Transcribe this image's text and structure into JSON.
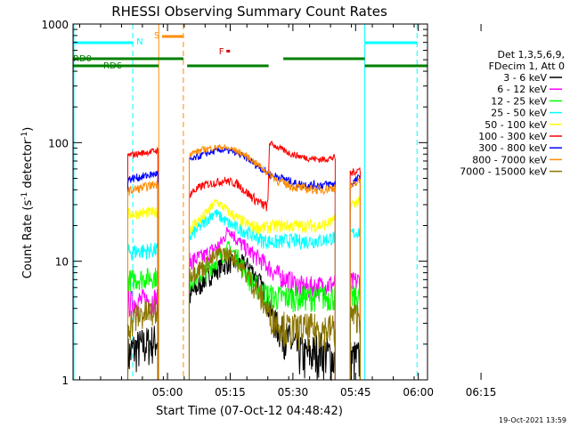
{
  "chart_data": {
    "type": "line",
    "title": "RHESSI Observing Summary Count Rates",
    "xlabel": "Start Time (07-Oct-12 04:48:42)",
    "ylabel_parts": [
      "Count Rate (s",
      "-1",
      " detector",
      "-1",
      ")"
    ],
    "yscale": "log",
    "ylim": [
      1,
      1000
    ],
    "xlim_min": [
      -11.3,
      73.5
    ],
    "x_tick_labels": [
      {
        "t": 11.3,
        "label": "05:00"
      },
      {
        "t": 26.3,
        "label": "05:15"
      },
      {
        "t": 41.3,
        "label": "05:30"
      },
      {
        "t": 56.3,
        "label": "05:45"
      },
      {
        "t": 71.3,
        "label": "06:00"
      },
      {
        "t": 86.3,
        "label": "06:15"
      }
    ],
    "y_tick_labels": [
      {
        "v": 1,
        "label": "1"
      },
      {
        "v": 10,
        "label": "10"
      },
      {
        "v": 100,
        "label": "100"
      },
      {
        "v": 1000,
        "label": "1000"
      }
    ],
    "legend_header": [
      "Det 1,3,5,6,9,",
      "FDecim 1, Att 0"
    ],
    "series": [
      {
        "name": "3 - 6 keV",
        "color": "#000000",
        "segments": [
          [
            [
              1.8,
              1.6
            ],
            [
              3,
              1.8
            ],
            [
              6,
              2.0
            ],
            [
              9,
              2.2
            ]
          ],
          [
            [
              16.5,
              5
            ],
            [
              20,
              7
            ],
            [
              24,
              9
            ],
            [
              28,
              10
            ],
            [
              31,
              9
            ],
            [
              34,
              6
            ],
            [
              37,
              3
            ],
            [
              40,
              2.2
            ],
            [
              44,
              1.6
            ],
            [
              48,
              1.8
            ],
            [
              51.5,
              1.5
            ]
          ],
          [
            [
              55,
              1.5
            ],
            [
              57.5,
              1.5
            ]
          ]
        ]
      },
      {
        "name": "6 - 12 keV",
        "color": "#ff00ff",
        "segments": [
          [
            [
              1.8,
              4.5
            ],
            [
              9,
              4.8
            ]
          ],
          [
            [
              16.5,
              10
            ],
            [
              20,
              11
            ],
            [
              24,
              14
            ],
            [
              26,
              19
            ],
            [
              28,
              15
            ],
            [
              31,
              12
            ],
            [
              34,
              10
            ],
            [
              37,
              8
            ],
            [
              40,
              7
            ],
            [
              44,
              6
            ],
            [
              48,
              6.2
            ],
            [
              51.5,
              6.5
            ]
          ],
          [
            [
              55,
              6.5
            ],
            [
              57.5,
              7
            ]
          ]
        ]
      },
      {
        "name": "12 - 25 keV",
        "color": "#00ff00",
        "segments": [
          [
            [
              1.8,
              7
            ],
            [
              9,
              7.5
            ]
          ],
          [
            [
              16.5,
              7
            ],
            [
              20,
              8
            ],
            [
              24,
              11
            ],
            [
              26,
              13
            ],
            [
              28,
              11
            ],
            [
              31,
              7
            ],
            [
              34,
              5.5
            ],
            [
              37,
              5
            ],
            [
              40,
              5
            ],
            [
              44,
              5
            ],
            [
              48,
              5
            ],
            [
              51.5,
              5
            ]
          ],
          [
            [
              55,
              5
            ],
            [
              57.5,
              5
            ]
          ]
        ]
      },
      {
        "name": "25 - 50 keV",
        "color": "#00ffff",
        "segments": [
          [
            [
              1.8,
              12
            ],
            [
              9,
              12.5
            ]
          ],
          [
            [
              16.5,
              16
            ],
            [
              20,
              21
            ],
            [
              22.5,
              26
            ],
            [
              25,
              22
            ],
            [
              28,
              19
            ],
            [
              30,
              18
            ],
            [
              34,
              15
            ],
            [
              37,
              14.5
            ],
            [
              40,
              15
            ],
            [
              44,
              14.8
            ],
            [
              48,
              15
            ],
            [
              51.5,
              16
            ]
          ],
          [
            [
              55,
              17
            ],
            [
              57.5,
              18
            ]
          ]
        ]
      },
      {
        "name": "50 - 100 keV",
        "color": "#ffff00",
        "segments": [
          [
            [
              1.8,
              25
            ],
            [
              9,
              26
            ]
          ],
          [
            [
              16.5,
              19
            ],
            [
              20,
              24
            ],
            [
              23,
              32
            ],
            [
              25,
              28
            ],
            [
              28,
              23
            ],
            [
              31,
              20
            ],
            [
              34,
              19
            ],
            [
              37,
              20
            ],
            [
              40,
              20
            ],
            [
              44,
              20
            ],
            [
              48,
              20
            ],
            [
              51.5,
              22
            ]
          ],
          [
            [
              55,
              30
            ],
            [
              57.5,
              32
            ]
          ]
        ]
      },
      {
        "name": "100 - 300 keV",
        "color": "#ff0000",
        "segments": [
          [
            [
              1.8,
              78
            ],
            [
              9,
              86
            ]
          ],
          [
            [
              16.5,
              37
            ],
            [
              20,
              44
            ],
            [
              25,
              48
            ],
            [
              28,
              45
            ],
            [
              31,
              36
            ],
            [
              34,
              30
            ],
            [
              35.3,
              29
            ],
            [
              35.7,
              100
            ],
            [
              38,
              90
            ],
            [
              41,
              80
            ],
            [
              44,
              75
            ],
            [
              48,
              72
            ],
            [
              51.5,
              75
            ]
          ],
          [
            [
              55,
              55
            ],
            [
              57.5,
              60
            ]
          ]
        ]
      },
      {
        "name": "300 - 800 keV",
        "color": "#0000ff",
        "segments": [
          [
            [
              1.8,
              49
            ],
            [
              9,
              55
            ]
          ],
          [
            [
              16.5,
              70
            ],
            [
              20,
              80
            ],
            [
              24,
              87
            ],
            [
              27,
              84
            ],
            [
              30,
              75
            ],
            [
              33,
              63
            ],
            [
              35.3,
              56
            ],
            [
              35.7,
              54
            ],
            [
              39,
              50
            ],
            [
              42,
              45
            ],
            [
              45,
              44
            ],
            [
              48,
              44
            ],
            [
              51.5,
              45
            ]
          ],
          [
            [
              55,
              44
            ],
            [
              57.5,
              52
            ]
          ]
        ]
      },
      {
        "name": "800 - 7000 keV",
        "color": "#ff8c00",
        "segments": [
          [
            [
              1.8,
              39
            ],
            [
              9,
              45
            ]
          ],
          [
            [
              16.5,
              80
            ],
            [
              20,
              88
            ],
            [
              24,
              92
            ],
            [
              27,
              88
            ],
            [
              30,
              78
            ],
            [
              33,
              65
            ],
            [
              35.5,
              55
            ],
            [
              38,
              47
            ],
            [
              41,
              43
            ],
            [
              44,
              41
            ],
            [
              48,
              40
            ],
            [
              51.5,
              42
            ]
          ],
          [
            [
              55,
              42
            ],
            [
              57.5,
              48
            ]
          ]
        ]
      },
      {
        "name": "7000 - 15000 keV",
        "color": "#8b7500",
        "segments": [
          [
            [
              1.8,
              3
            ],
            [
              5,
              3.6
            ],
            [
              9,
              3.8
            ]
          ],
          [
            [
              16.5,
              8
            ],
            [
              20,
              9
            ],
            [
              24,
              12
            ],
            [
              27,
              11
            ],
            [
              30,
              8
            ],
            [
              33,
              5.5
            ],
            [
              36,
              3.5
            ],
            [
              40,
              2.7
            ],
            [
              44,
              2.7
            ],
            [
              48,
              2.7
            ],
            [
              51.5,
              2.7
            ]
          ],
          [
            [
              55,
              3.5
            ],
            [
              57.5,
              3.5
            ]
          ]
        ]
      }
    ],
    "annotations": [
      {
        "name": "saa",
        "text": "S",
        "color": "#ff8c00"
      },
      {
        "name": "night",
        "text": "N",
        "color": "#00ffff"
      },
      {
        "name": "flare",
        "text": "F",
        "color": "#dd0000"
      },
      {
        "name": "rd0",
        "text": "RD0",
        "color": "#008000"
      },
      {
        "name": "rd6",
        "text": "RD6",
        "color": "#008000"
      }
    ]
  },
  "timestamp": "19-Oct-2021 13:59"
}
